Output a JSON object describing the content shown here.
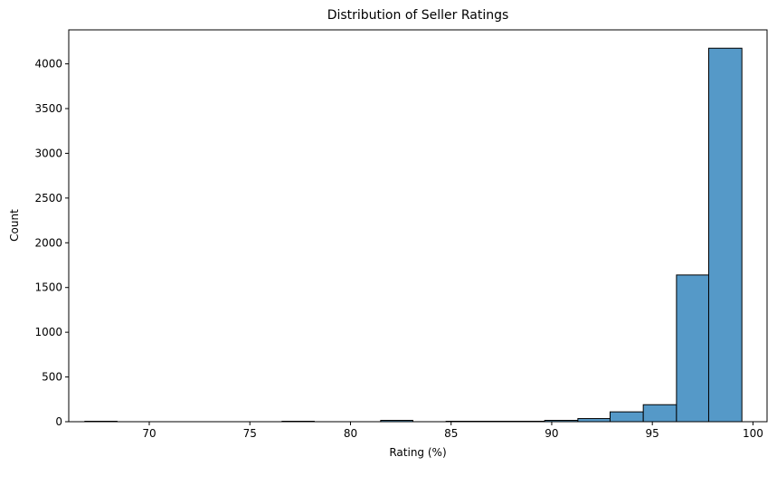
{
  "chart_data": {
    "type": "bar",
    "title": "Distribution of Seller Ratings",
    "xlabel": "Rating (%)",
    "ylabel": "Count",
    "xlim": [
      66.0,
      100.7
    ],
    "ylim": [
      0,
      4380
    ],
    "xticks": [
      70,
      75,
      80,
      85,
      90,
      95,
      100
    ],
    "yticks": [
      0,
      500,
      1000,
      1500,
      2000,
      2500,
      3000,
      3500,
      4000
    ],
    "bins": [
      {
        "start": 66.8,
        "end": 68.4,
        "count": 5
      },
      {
        "start": 68.4,
        "end": 70.05,
        "count": 0
      },
      {
        "start": 70.05,
        "end": 71.7,
        "count": 0
      },
      {
        "start": 71.7,
        "end": 73.3,
        "count": 0
      },
      {
        "start": 73.3,
        "end": 74.95,
        "count": 0
      },
      {
        "start": 74.95,
        "end": 76.6,
        "count": 0
      },
      {
        "start": 76.6,
        "end": 78.2,
        "count": 5
      },
      {
        "start": 78.2,
        "end": 79.85,
        "count": 0
      },
      {
        "start": 79.85,
        "end": 81.5,
        "count": 0
      },
      {
        "start": 81.5,
        "end": 83.1,
        "count": 15
      },
      {
        "start": 83.1,
        "end": 84.75,
        "count": 0
      },
      {
        "start": 84.75,
        "end": 86.4,
        "count": 5
      },
      {
        "start": 86.4,
        "end": 88.0,
        "count": 5
      },
      {
        "start": 88.0,
        "end": 89.65,
        "count": 5
      },
      {
        "start": 89.65,
        "end": 91.3,
        "count": 15
      },
      {
        "start": 91.3,
        "end": 92.9,
        "count": 35
      },
      {
        "start": 92.9,
        "end": 94.55,
        "count": 110
      },
      {
        "start": 94.55,
        "end": 96.2,
        "count": 190
      },
      {
        "start": 96.2,
        "end": 97.8,
        "count": 1640
      },
      {
        "start": 97.8,
        "end": 99.45,
        "count": 4175
      }
    ],
    "bar_color": "#5599c8",
    "edge_color": "#000000",
    "grid": false
  }
}
